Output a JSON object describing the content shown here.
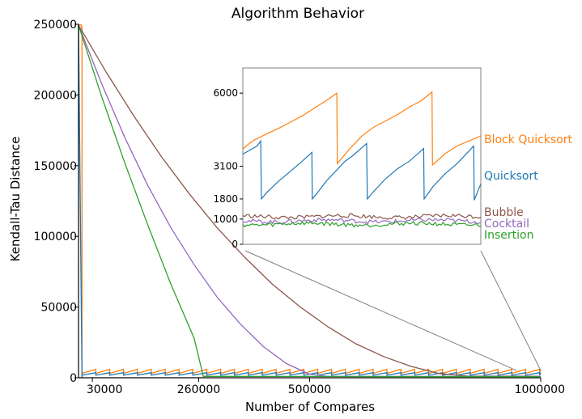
{
  "chart_data": {
    "type": "line",
    "title": "Algorithm Behavior",
    "xlabel": "Number of Compares",
    "ylabel": "Kendall-Tau Distance",
    "xlim": [
      0,
      1000000
    ],
    "ylim": [
      0,
      250000
    ],
    "x_ticks": [
      30000,
      260000,
      500000,
      1000000
    ],
    "y_ticks": [
      0,
      50000,
      100000,
      150000,
      200000,
      250000
    ],
    "grid": false,
    "legend": "labels at right edge",
    "series": [
      {
        "name": "Block Quicksort",
        "color": "#ff7f0e",
        "style": "sawtooth",
        "points": [
          [
            0,
            249500
          ],
          [
            6000,
            249500
          ],
          [
            6000,
            248500
          ],
          [
            7500,
            248500
          ],
          [
            7500,
            0
          ]
        ],
        "saw_start": 7500,
        "saw_period": 30000,
        "saw_low": 3100,
        "saw_high": 6000
      },
      {
        "name": "Quicksort",
        "color": "#1f77b4",
        "style": "sawtooth",
        "points": [
          [
            0,
            249500
          ],
          [
            7500,
            0
          ]
        ],
        "saw_start": 7500,
        "saw_period": 30000,
        "saw_low": 1800,
        "saw_high": 3600
      },
      {
        "name": "Bubble",
        "color": "#8c564b",
        "style": "curve",
        "points": [
          [
            0,
            249500
          ],
          [
            60000,
            216000
          ],
          [
            120000,
            185000
          ],
          [
            180000,
            156000
          ],
          [
            240000,
            130000
          ],
          [
            300000,
            106000
          ],
          [
            360000,
            85000
          ],
          [
            420000,
            66000
          ],
          [
            480000,
            50000
          ],
          [
            540000,
            36000
          ],
          [
            600000,
            24000
          ],
          [
            660000,
            15000
          ],
          [
            720000,
            8000
          ],
          [
            780000,
            3000
          ],
          [
            840000,
            1200
          ],
          [
            1000000,
            1100
          ]
        ]
      },
      {
        "name": "Cocktail",
        "color": "#9467bd",
        "style": "curve",
        "points": [
          [
            0,
            249500
          ],
          [
            50000,
            208000
          ],
          [
            100000,
            170000
          ],
          [
            150000,
            136000
          ],
          [
            200000,
            106000
          ],
          [
            250000,
            80000
          ],
          [
            300000,
            57000
          ],
          [
            350000,
            38000
          ],
          [
            400000,
            22000
          ],
          [
            450000,
            10000
          ],
          [
            500000,
            2500
          ],
          [
            540000,
            900
          ],
          [
            1000000,
            900
          ]
        ]
      },
      {
        "name": "Insertion",
        "color": "#2ca02c",
        "style": "curve",
        "points": [
          [
            0,
            249500
          ],
          [
            50000,
            199000
          ],
          [
            100000,
            152000
          ],
          [
            150000,
            108000
          ],
          [
            200000,
            66000
          ],
          [
            250000,
            28000
          ],
          [
            270000,
            1000
          ],
          [
            1000000,
            800
          ]
        ]
      }
    ],
    "inset": {
      "y_ticks": [
        0,
        1000,
        1800,
        3100,
        6000
      ],
      "ylim": [
        0,
        7000
      ],
      "series": [
        {
          "name": "Block Quicksort",
          "color": "#ff7f0e",
          "points": [
            [
              0,
              3780
            ],
            [
              0.02,
              3950
            ],
            [
              0.05,
              4150
            ],
            [
              0.1,
              4380
            ],
            [
              0.15,
              4600
            ],
            [
              0.2,
              4850
            ],
            [
              0.25,
              5100
            ],
            [
              0.3,
              5400
            ],
            [
              0.35,
              5700
            ],
            [
              0.395,
              6000
            ],
            [
              0.397,
              3200
            ],
            [
              0.45,
              3800
            ],
            [
              0.5,
              4300
            ],
            [
              0.55,
              4650
            ],
            [
              0.6,
              4900
            ],
            [
              0.65,
              5150
            ],
            [
              0.7,
              5450
            ],
            [
              0.75,
              5700
            ],
            [
              0.795,
              6050
            ],
            [
              0.797,
              3150
            ],
            [
              0.85,
              3600
            ],
            [
              0.9,
              3900
            ],
            [
              0.95,
              4100
            ],
            [
              1.0,
              4300
            ]
          ]
        },
        {
          "name": "Quicksort",
          "color": "#1f77b4",
          "points": [
            [
              0,
              3580
            ],
            [
              0.06,
              3900
            ],
            [
              0.075,
              4100
            ],
            [
              0.078,
              1800
            ],
            [
              0.1,
              2050
            ],
            [
              0.15,
              2500
            ],
            [
              0.2,
              2900
            ],
            [
              0.25,
              3300
            ],
            [
              0.29,
              3650
            ],
            [
              0.292,
              1800
            ],
            [
              0.31,
              2000
            ],
            [
              0.35,
              2500
            ],
            [
              0.4,
              3000
            ],
            [
              0.43,
              3300
            ],
            [
              0.46,
              3500
            ],
            [
              0.52,
              4000
            ],
            [
              0.523,
              1800
            ],
            [
              0.55,
              2100
            ],
            [
              0.6,
              2600
            ],
            [
              0.65,
              3000
            ],
            [
              0.7,
              3300
            ],
            [
              0.76,
              3800
            ],
            [
              0.762,
              1800
            ],
            [
              0.8,
              2300
            ],
            [
              0.85,
              2800
            ],
            [
              0.9,
              3200
            ],
            [
              0.95,
              3700
            ],
            [
              0.97,
              3900
            ],
            [
              0.972,
              1750
            ],
            [
              1.0,
              2400
            ]
          ]
        },
        {
          "name": "Bubble",
          "color": "#8c564b",
          "level": 1100
        },
        {
          "name": "Cocktail",
          "color": "#9467bd",
          "level": 930
        },
        {
          "name": "Insertion",
          "color": "#2ca02c",
          "level": 800
        }
      ]
    }
  }
}
